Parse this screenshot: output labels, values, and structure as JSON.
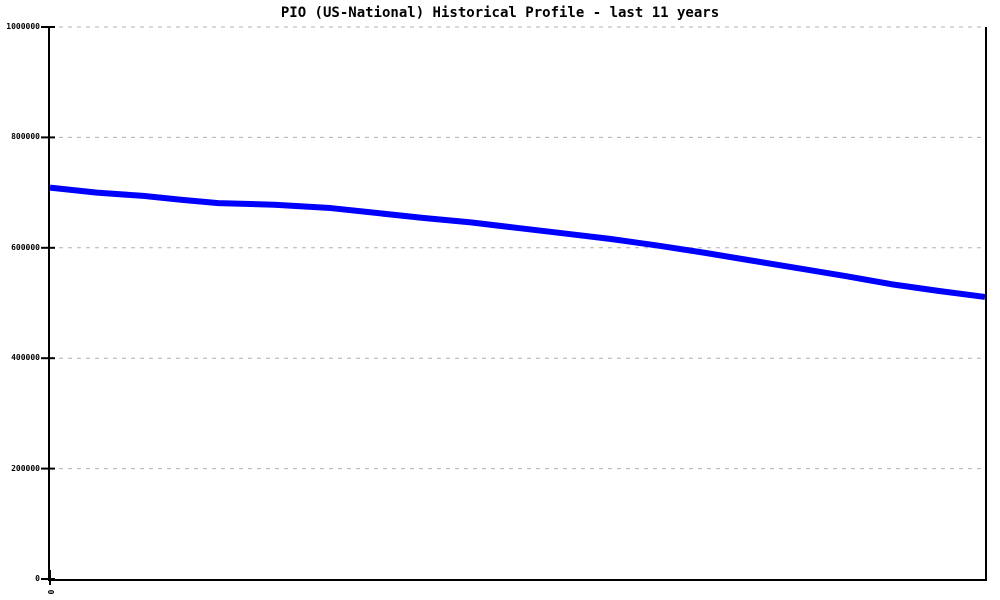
{
  "chart_data": {
    "type": "line",
    "title": "PIO (US-National) Historical Profile - last 11 years",
    "x_axis": {
      "tick_labels": [
        "0"
      ],
      "range": [
        0,
        10
      ],
      "label": ""
    },
    "y_axis": {
      "labels": [
        "0",
        "200000",
        "400000",
        "600000",
        "800000",
        "1000000"
      ],
      "values": [
        0,
        200000,
        400000,
        600000,
        800000,
        1000000
      ],
      "range": [
        0,
        1000000
      ]
    },
    "grid": {
      "horizontal": true,
      "style": "dashed",
      "color": "#b0b0b0"
    },
    "legend": "none",
    "axis_color": "#000000",
    "background_color": "#ffffff",
    "series": [
      {
        "name": "PIO",
        "color": "#0000ff",
        "stroke_width": 6,
        "points": [
          [
            0.0,
            709000
          ],
          [
            0.5,
            700000
          ],
          [
            1.0,
            694000
          ],
          [
            1.4,
            687000
          ],
          [
            1.8,
            681000
          ],
          [
            2.0,
            680000
          ],
          [
            2.4,
            678000
          ],
          [
            3.0,
            672000
          ],
          [
            3.5,
            663000
          ],
          [
            4.0,
            654000
          ],
          [
            4.5,
            646000
          ],
          [
            5.0,
            636000
          ],
          [
            5.5,
            626000
          ],
          [
            6.0,
            616000
          ],
          [
            6.5,
            604000
          ],
          [
            7.0,
            591000
          ],
          [
            7.5,
            577000
          ],
          [
            8.0,
            563000
          ],
          [
            8.5,
            549000
          ],
          [
            9.0,
            534000
          ],
          [
            9.5,
            522000
          ],
          [
            10.0,
            511000
          ]
        ]
      }
    ]
  }
}
